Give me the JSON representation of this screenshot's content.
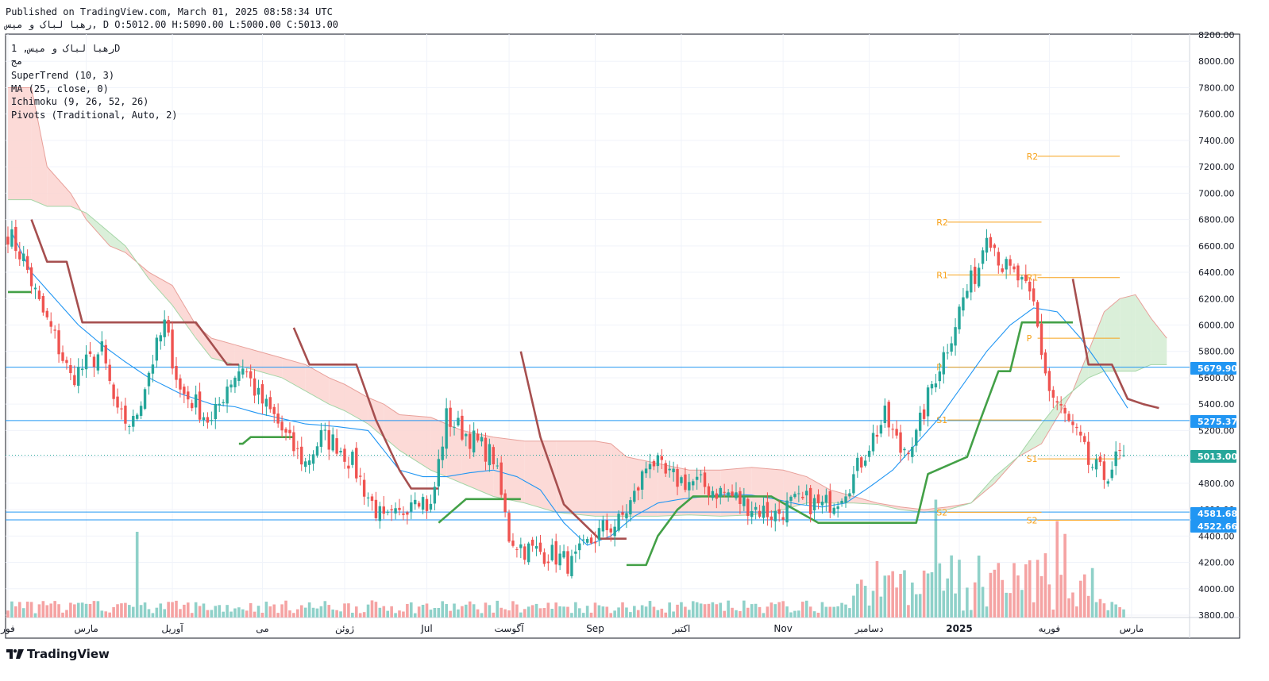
{
  "header": {
    "published_line": "Published on TradingView.com, March 01, 2025 08:58:34 UTC",
    "ohlc_line": "رهبا لباک و میس, D O:5012.00 H:5090.00 L:5000.00 C:5013.00"
  },
  "legend": {
    "symbol": "رهبا لباک و میس, 1D",
    "exchange": "مج",
    "indicators": [
      "SuperTrend (10, 3)",
      "MA (25, close, 0)",
      "Ichimoku (9, 26, 52, 26)",
      "Pivots (Traditional, Auto, 2)"
    ]
  },
  "branding": {
    "logo_text": "TradingView",
    "logo_icon": "tradingview-logo-icon"
  },
  "colors": {
    "up": "#26a69a",
    "down": "#ef5350",
    "up_volume": "#8fd1c9",
    "down_volume": "#f5a3a3",
    "supertrend_up": "#43a047",
    "supertrend_down": "#a64f4f",
    "ma": "#2196f3",
    "pivot": "#f7a21b",
    "hline": "#2196f3",
    "last_price": "#26a69a",
    "cloud_bear": "#fbd4d0",
    "cloud_bull": "#d4ecd2"
  },
  "chart_data": {
    "type": "candlestick",
    "symbol": "رهبا لباک و میس",
    "interval": "1D",
    "y_axis": {
      "side": "right",
      "ylim": [
        3800,
        8200
      ],
      "ticks": [
        3800,
        4000,
        4200,
        4400,
        4600,
        4800,
        5000,
        5200,
        5400,
        5600,
        5800,
        6000,
        6200,
        6400,
        6600,
        6800,
        7000,
        7200,
        7400,
        7600,
        7800,
        8000,
        8200
      ],
      "tick_labels": [
        "3800.00",
        "4000.00",
        "4200.00",
        "4400.00",
        "4600.00",
        "4800.00",
        "5000.00",
        "5200.00",
        "5400.00",
        "5600.00",
        "5800.00",
        "6000.00",
        "6200.00",
        "6400.00",
        "6600.00",
        "6800.00",
        "7000.00",
        "7200.00",
        "7400.00",
        "7600.00",
        "7800.00",
        "8000.00",
        "8200.00"
      ]
    },
    "x_axis": {
      "labels": [
        {
          "text": "فور",
          "index": 0
        },
        {
          "text": "مارس",
          "index": 20
        },
        {
          "text": "آوریل",
          "index": 42
        },
        {
          "text": "می",
          "index": 65
        },
        {
          "text": "ژوئن",
          "index": 86
        },
        {
          "text": "Jul",
          "index": 107
        },
        {
          "text": "آگوست",
          "index": 128
        },
        {
          "text": "Sep",
          "index": 150
        },
        {
          "text": "اکتبر",
          "index": 172
        },
        {
          "text": "Nov",
          "index": 198
        },
        {
          "text": "دسامبر",
          "index": 220
        },
        {
          "text": "2025",
          "index": 243,
          "bold": true
        },
        {
          "text": "فوریه",
          "index": 266
        },
        {
          "text": "مارس",
          "index": 287
        }
      ]
    },
    "ohlc_last": {
      "open": 5012.0,
      "high": 5090.0,
      "low": 5000.0,
      "close": 5013.0
    },
    "price_lines": [
      {
        "value": 5679.9,
        "label": "5679.90",
        "color": "#2196f3"
      },
      {
        "value": 5275.37,
        "label": "5275.37",
        "color": "#2196f3"
      },
      {
        "value": 5013.0,
        "label": "5013.00",
        "color": "#26a69a",
        "dotted": true
      },
      {
        "value": 4581.68,
        "label": "4581.68",
        "color": "#2196f3"
      },
      {
        "value": 4522.66,
        "label": "4522.66",
        "color": "#2196f3"
      }
    ],
    "pivots": [
      {
        "period": 1,
        "start": 240,
        "end": 264,
        "levels": [
          {
            "name": "R2",
            "value": 6780
          },
          {
            "name": "R1",
            "value": 6380
          },
          {
            "name": "P",
            "value": 5680
          },
          {
            "name": "S1",
            "value": 5280
          },
          {
            "name": "S2",
            "value": 4580
          }
        ]
      },
      {
        "period": 2,
        "start": 263,
        "end": 284,
        "levels": [
          {
            "name": "R2",
            "value": 7280
          },
          {
            "name": "R1",
            "value": 6360
          },
          {
            "name": "P",
            "value": 5900
          },
          {
            "name": "S1",
            "value": 4985
          },
          {
            "name": "S2",
            "value": 4520
          }
        ]
      }
    ],
    "close_anchors": [
      [
        0,
        6700
      ],
      [
        4,
        6500
      ],
      [
        8,
        6150
      ],
      [
        12,
        5900
      ],
      [
        16,
        5600
      ],
      [
        20,
        5700
      ],
      [
        24,
        5800
      ],
      [
        28,
        5300
      ],
      [
        32,
        5250
      ],
      [
        36,
        5650
      ],
      [
        40,
        6000
      ],
      [
        44,
        5500
      ],
      [
        48,
        5400
      ],
      [
        52,
        5250
      ],
      [
        56,
        5550
      ],
      [
        60,
        5700
      ],
      [
        64,
        5450
      ],
      [
        68,
        5300
      ],
      [
        72,
        5100
      ],
      [
        76,
        4950
      ],
      [
        80,
        5150
      ],
      [
        84,
        5100
      ],
      [
        88,
        4950
      ],
      [
        92,
        4700
      ],
      [
        96,
        4500
      ],
      [
        100,
        4550
      ],
      [
        104,
        4750
      ],
      [
        108,
        4600
      ],
      [
        112,
        5300
      ],
      [
        116,
        5200
      ],
      [
        120,
        5100
      ],
      [
        124,
        5000
      ],
      [
        128,
        4400
      ],
      [
        132,
        4300
      ],
      [
        136,
        4280
      ],
      [
        140,
        4250
      ],
      [
        144,
        4180
      ],
      [
        148,
        4330
      ],
      [
        152,
        4450
      ],
      [
        156,
        4500
      ],
      [
        160,
        4700
      ],
      [
        164,
        5000
      ],
      [
        168,
        4850
      ],
      [
        172,
        4820
      ],
      [
        176,
        4800
      ],
      [
        180,
        4750
      ],
      [
        184,
        4720
      ],
      [
        188,
        4650
      ],
      [
        192,
        4600
      ],
      [
        196,
        4560
      ],
      [
        200,
        4640
      ],
      [
        204,
        4660
      ],
      [
        208,
        4620
      ],
      [
        212,
        4700
      ],
      [
        216,
        4850
      ],
      [
        220,
        5100
      ],
      [
        224,
        5300
      ],
      [
        228,
        5050
      ],
      [
        232,
        5150
      ],
      [
        236,
        5550
      ],
      [
        240,
        5850
      ],
      [
        244,
        6200
      ],
      [
        248,
        6450
      ],
      [
        250,
        6750
      ],
      [
        254,
        6450
      ],
      [
        258,
        6350
      ],
      [
        262,
        6150
      ],
      [
        264,
        5800
      ],
      [
        266,
        5500
      ],
      [
        270,
        5300
      ],
      [
        274,
        5100
      ],
      [
        276,
        4950
      ],
      [
        280,
        4850
      ],
      [
        284,
        5013
      ]
    ],
    "supertrend_segments": [
      {
        "trend": "up",
        "points": [
          [
            0,
            6250
          ],
          [
            6,
            6250
          ]
        ]
      },
      {
        "trend": "down",
        "points": [
          [
            6,
            6800
          ],
          [
            10,
            6480
          ],
          [
            15,
            6480
          ],
          [
            19,
            6020
          ],
          [
            36,
            6020
          ],
          [
            48,
            6020
          ],
          [
            56,
            5700
          ],
          [
            59,
            5700
          ]
        ]
      },
      {
        "trend": "up",
        "points": [
          [
            59,
            5100
          ],
          [
            60,
            5100
          ],
          [
            62,
            5150
          ],
          [
            73,
            5150
          ]
        ]
      },
      {
        "trend": "down",
        "points": [
          [
            73,
            5980
          ],
          [
            77,
            5700
          ],
          [
            89,
            5700
          ],
          [
            94,
            5280
          ],
          [
            100,
            4900
          ],
          [
            103,
            4760
          ],
          [
            110,
            4760
          ]
        ]
      },
      {
        "trend": "up",
        "points": [
          [
            110,
            4500
          ],
          [
            117,
            4680
          ],
          [
            131,
            4680
          ]
        ]
      },
      {
        "trend": "down",
        "points": [
          [
            131,
            5800
          ],
          [
            136,
            5150
          ],
          [
            142,
            4640
          ],
          [
            151,
            4380
          ],
          [
            158,
            4380
          ]
        ]
      },
      {
        "trend": "up",
        "points": [
          [
            158,
            4180
          ],
          [
            163,
            4180
          ],
          [
            166,
            4400
          ],
          [
            171,
            4600
          ],
          [
            175,
            4700
          ],
          [
            195,
            4700
          ],
          [
            207,
            4500
          ],
          [
            230,
            4500
          ],
          [
            232,
            4500
          ],
          [
            235,
            4870
          ],
          [
            245,
            5000
          ],
          [
            248,
            5250
          ],
          [
            253,
            5650
          ],
          [
            256,
            5650
          ],
          [
            259,
            6020
          ],
          [
            272,
            6020
          ]
        ]
      },
      {
        "trend": "down",
        "points": [
          [
            272,
            6350
          ],
          [
            276,
            5700
          ],
          [
            282,
            5700
          ],
          [
            286,
            5440
          ],
          [
            290,
            5400
          ],
          [
            294,
            5370
          ]
        ]
      }
    ],
    "ma_anchors": [
      [
        1,
        6700
      ],
      [
        6,
        6400
      ],
      [
        12,
        6200
      ],
      [
        18,
        6000
      ],
      [
        24,
        5850
      ],
      [
        30,
        5720
      ],
      [
        36,
        5600
      ],
      [
        44,
        5480
      ],
      [
        52,
        5400
      ],
      [
        58,
        5380
      ],
      [
        64,
        5330
      ],
      [
        70,
        5290
      ],
      [
        76,
        5250
      ],
      [
        84,
        5230
      ],
      [
        92,
        5200
      ],
      [
        100,
        4900
      ],
      [
        106,
        4850
      ],
      [
        112,
        4850
      ],
      [
        118,
        4880
      ],
      [
        124,
        4900
      ],
      [
        130,
        4850
      ],
      [
        136,
        4750
      ],
      [
        142,
        4500
      ],
      [
        148,
        4330
      ],
      [
        154,
        4400
      ],
      [
        160,
        4550
      ],
      [
        166,
        4650
      ],
      [
        172,
        4680
      ],
      [
        178,
        4700
      ],
      [
        184,
        4720
      ],
      [
        190,
        4710
      ],
      [
        196,
        4680
      ],
      [
        202,
        4640
      ],
      [
        208,
        4620
      ],
      [
        214,
        4650
      ],
      [
        220,
        4770
      ],
      [
        226,
        4900
      ],
      [
        232,
        5100
      ],
      [
        238,
        5300
      ],
      [
        244,
        5550
      ],
      [
        250,
        5800
      ],
      [
        256,
        6000
      ],
      [
        262,
        6130
      ],
      [
        268,
        6100
      ],
      [
        274,
        5900
      ],
      [
        280,
        5650
      ],
      [
        286,
        5370
      ]
    ],
    "ichimoku_cloud_top": [
      [
        0,
        7800
      ],
      [
        6,
        7800
      ],
      [
        10,
        7200
      ],
      [
        16,
        7000
      ],
      [
        20,
        6800
      ],
      [
        26,
        6600
      ],
      [
        30,
        6550
      ],
      [
        36,
        6400
      ],
      [
        42,
        6300
      ],
      [
        48,
        6000
      ],
      [
        52,
        5900
      ],
      [
        58,
        5850
      ],
      [
        64,
        5800
      ],
      [
        70,
        5750
      ],
      [
        76,
        5700
      ],
      [
        82,
        5600
      ],
      [
        86,
        5550
      ],
      [
        92,
        5450
      ],
      [
        96,
        5400
      ],
      [
        100,
        5320
      ],
      [
        108,
        5300
      ],
      [
        112,
        5250
      ],
      [
        116,
        5200
      ],
      [
        124,
        5150
      ],
      [
        132,
        5120
      ],
      [
        140,
        5120
      ],
      [
        150,
        5120
      ],
      [
        154,
        5100
      ],
      [
        158,
        5000
      ],
      [
        166,
        4950
      ],
      [
        174,
        4900
      ],
      [
        182,
        4900
      ],
      [
        190,
        4920
      ],
      [
        198,
        4900
      ],
      [
        204,
        4850
      ],
      [
        210,
        4750
      ],
      [
        216,
        4700
      ],
      [
        222,
        4650
      ],
      [
        228,
        4620
      ],
      [
        234,
        4600
      ],
      [
        240,
        4620
      ],
      [
        246,
        4650
      ],
      [
        252,
        4800
      ],
      [
        258,
        5000
      ],
      [
        264,
        5100
      ],
      [
        268,
        5300
      ],
      [
        272,
        5500
      ],
      [
        276,
        5800
      ],
      [
        280,
        6100
      ],
      [
        284,
        6200
      ],
      [
        288,
        6230
      ],
      [
        292,
        6050
      ],
      [
        296,
        5900
      ]
    ],
    "ichimoku_cloud_bottom": [
      [
        0,
        6950
      ],
      [
        6,
        6950
      ],
      [
        10,
        6900
      ],
      [
        16,
        6900
      ],
      [
        20,
        6850
      ],
      [
        26,
        6700
      ],
      [
        30,
        6600
      ],
      [
        36,
        6350
      ],
      [
        42,
        6150
      ],
      [
        48,
        5900
      ],
      [
        52,
        5750
      ],
      [
        58,
        5700
      ],
      [
        64,
        5650
      ],
      [
        70,
        5600
      ],
      [
        76,
        5500
      ],
      [
        82,
        5400
      ],
      [
        86,
        5350
      ],
      [
        92,
        5250
      ],
      [
        96,
        5150
      ],
      [
        100,
        5050
      ],
      [
        108,
        4900
      ],
      [
        112,
        4850
      ],
      [
        116,
        4800
      ],
      [
        124,
        4700
      ],
      [
        132,
        4650
      ],
      [
        140,
        4580
      ],
      [
        150,
        4550
      ],
      [
        154,
        4550
      ],
      [
        158,
        4550
      ],
      [
        166,
        4550
      ],
      [
        174,
        4560
      ],
      [
        182,
        4550
      ],
      [
        190,
        4560
      ],
      [
        198,
        4600
      ],
      [
        204,
        4650
      ],
      [
        210,
        4650
      ],
      [
        216,
        4650
      ],
      [
        222,
        4640
      ],
      [
        228,
        4600
      ],
      [
        234,
        4580
      ],
      [
        240,
        4600
      ],
      [
        246,
        4650
      ],
      [
        252,
        4850
      ],
      [
        258,
        5000
      ],
      [
        264,
        5250
      ],
      [
        268,
        5400
      ],
      [
        272,
        5500
      ],
      [
        276,
        5600
      ],
      [
        280,
        5650
      ],
      [
        284,
        5650
      ],
      [
        288,
        5650
      ],
      [
        292,
        5700
      ],
      [
        296,
        5700
      ]
    ],
    "volume_spikes": [
      {
        "index": 33,
        "relative": 0.8
      },
      {
        "index": 237,
        "relative": 1.1
      },
      {
        "index": 268,
        "relative": 0.9
      },
      {
        "index": 270,
        "relative": 0.78
      }
    ],
    "grid": true,
    "legend_position": "top-left"
  }
}
